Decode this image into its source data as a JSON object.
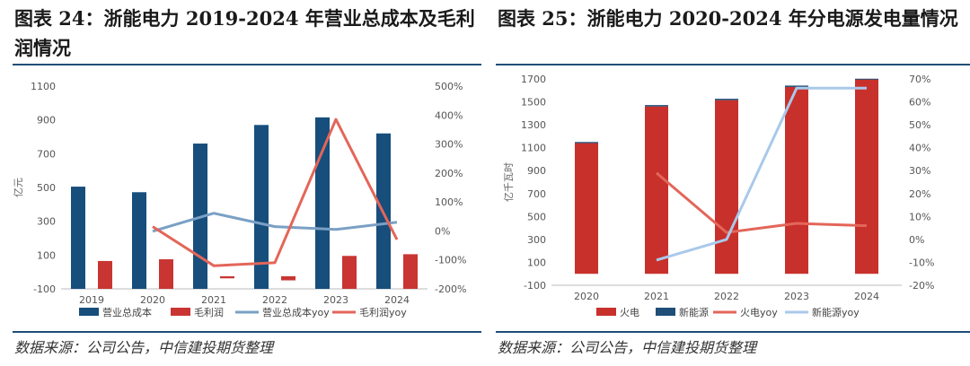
{
  "panels": [
    {
      "title": "图表 24：浙能电力 2019-2024 年营业总成本及毛利润情况",
      "source": "数据来源：公司公告，中信建投期货整理"
    },
    {
      "title": "图表 25：浙能电力 2020-2024 年分电源发电量情况",
      "source": "数据来源：公司公告，中信建投期货整理"
    }
  ],
  "chart_data": [
    {
      "type": "bar",
      "categories": [
        "2019",
        "2020",
        "2021",
        "2022",
        "2023",
        "2024"
      ],
      "series": [
        {
          "name": "营业总成本",
          "kind": "bar",
          "axis": "left",
          "color": "#174e7c",
          "values": [
            505,
            472,
            760,
            870,
            915,
            820
          ]
        },
        {
          "name": "毛利润",
          "kind": "bar",
          "axis": "left",
          "color": "#c83532",
          "values": [
            65,
            75,
            -20,
            -40,
            95,
            105
          ]
        },
        {
          "name": "营业总成本yoy",
          "kind": "line",
          "axis": "right",
          "color": "#7aa0c4",
          "values": [
            null,
            -1,
            61,
            15,
            5,
            30
          ]
        },
        {
          "name": "毛利润yoy",
          "kind": "line",
          "axis": "right",
          "color": "#e36659",
          "values": [
            null,
            15,
            -120,
            -110,
            385,
            -30
          ]
        }
      ],
      "ylabel": "亿元",
      "ylim": [
        -100,
        1100
      ],
      "yticks": [
        -100,
        100,
        300,
        500,
        700,
        900,
        1100
      ],
      "y2lim": [
        -200,
        500
      ],
      "y2ticks": [
        "-200%",
        "-100%",
        "0%",
        "100%",
        "200%",
        "300%",
        "400%",
        "500%"
      ],
      "legend_position": "bottom",
      "grid": false
    },
    {
      "type": "bar",
      "stacked": true,
      "categories": [
        "2020",
        "2021",
        "2022",
        "2023",
        "2024"
      ],
      "series": [
        {
          "name": "火电",
          "kind": "bar",
          "axis": "left",
          "color": "#c8302c",
          "values": [
            1140,
            1460,
            1515,
            1630,
            1700
          ]
        },
        {
          "name": "新能源",
          "kind": "bar",
          "axis": "left",
          "color": "#1f4e79",
          "values": [
            10,
            12,
            12,
            12,
            2
          ]
        },
        {
          "name": "火电yoy",
          "kind": "line",
          "axis": "right",
          "color": "#e36659",
          "values": [
            null,
            29,
            3,
            7,
            6
          ]
        },
        {
          "name": "新能源yoy",
          "kind": "line",
          "axis": "right",
          "color": "#a9c9ea",
          "values": [
            null,
            -9,
            0,
            66,
            66
          ]
        }
      ],
      "ylabel": "亿千瓦时",
      "ylim": [
        -100,
        1700
      ],
      "yticks": [
        -100,
        100,
        300,
        500,
        700,
        900,
        1100,
        1300,
        1500,
        1700
      ],
      "y2lim": [
        -20,
        70
      ],
      "y2ticks": [
        "-20%",
        "-10%",
        "0%",
        "10%",
        "20%",
        "30%",
        "40%",
        "50%",
        "60%",
        "70%"
      ],
      "legend_position": "bottom",
      "grid": false
    }
  ]
}
